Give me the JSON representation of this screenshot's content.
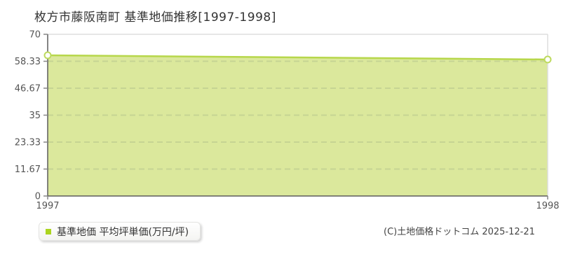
{
  "chart_data": {
    "type": "area",
    "title": "枚方市藤阪南町 基準地価推移[1997-1998]",
    "x": [
      1997,
      1998
    ],
    "x_labels": [
      "1997",
      "1998"
    ],
    "series": [
      {
        "name": "基準地価 平均坪単価(万円/坪)",
        "values": [
          60.9,
          59.1
        ]
      }
    ],
    "ylim": [
      0,
      70
    ],
    "yticks": [
      {
        "value": 0,
        "label": "0"
      },
      {
        "value": 11.67,
        "label": "11.67"
      },
      {
        "value": 23.33,
        "label": "23.33"
      },
      {
        "value": 35,
        "label": "35"
      },
      {
        "value": 46.67,
        "label": "46.67"
      },
      {
        "value": 58.33,
        "label": "58.33"
      },
      {
        "value": 70,
        "label": "70"
      }
    ],
    "grid": "dashed-horizontal",
    "legend_position": "bottom-left",
    "colors": {
      "area_fill": "#dbe89c",
      "line": "#b7d74b",
      "marker_fill": "#ffffff",
      "marker_stroke": "#bdda5e",
      "grid_dash": "#c6d493",
      "axis_dark": "#5c5c5c",
      "border_light": "#dddddd",
      "tick": "#888888",
      "tick_text": "#555555",
      "legend_marker": "#abd41f"
    }
  },
  "footer": {
    "copyright": "(C)土地価格ドットコム 2025-12-21"
  }
}
